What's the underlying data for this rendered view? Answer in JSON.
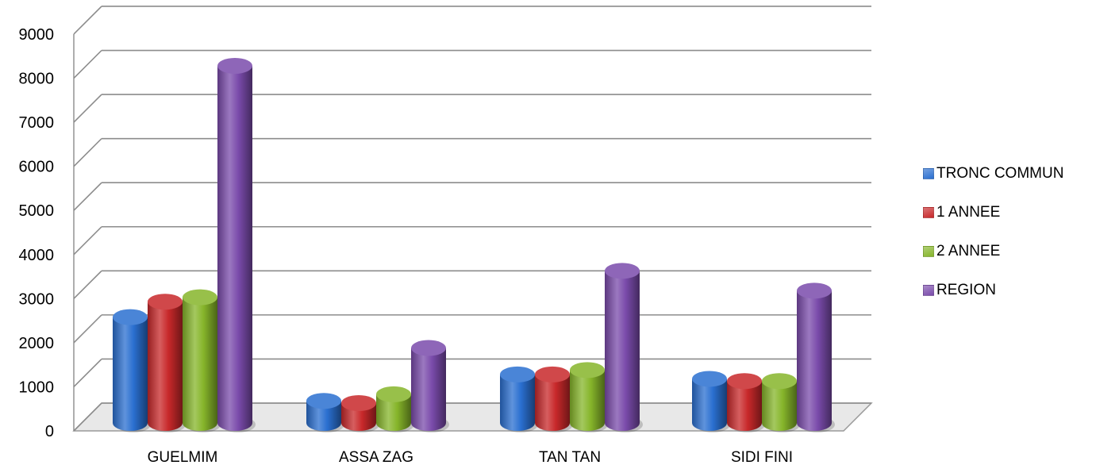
{
  "chart_data": {
    "type": "bar",
    "title": "",
    "xlabel": "",
    "ylabel": "",
    "ylim": [
      0,
      9000
    ],
    "yticks": [
      "0",
      "1000",
      "2000",
      "3000",
      "4000",
      "5000",
      "6000",
      "7000",
      "8000",
      "9000"
    ],
    "grid": true,
    "legend_position": "right",
    "categories": [
      "GUELMIM",
      "ASSA ZAG",
      "TAN TAN",
      "SIDI FINI"
    ],
    "series": [
      {
        "name": "TRONC COMMUN",
        "color": "#2a6fd0",
        "values": [
          2400,
          500,
          1100,
          1000
        ]
      },
      {
        "name": "1 ANNEE",
        "color": "#c8282a",
        "values": [
          2750,
          450,
          1100,
          950
        ]
      },
      {
        "name": "2 ANNEE",
        "color": "#86b52a",
        "values": [
          2850,
          650,
          1200,
          950
        ]
      },
      {
        "name": "REGION",
        "color": "#7a4bab",
        "values": [
          8100,
          1700,
          3450,
          3000
        ]
      }
    ]
  }
}
